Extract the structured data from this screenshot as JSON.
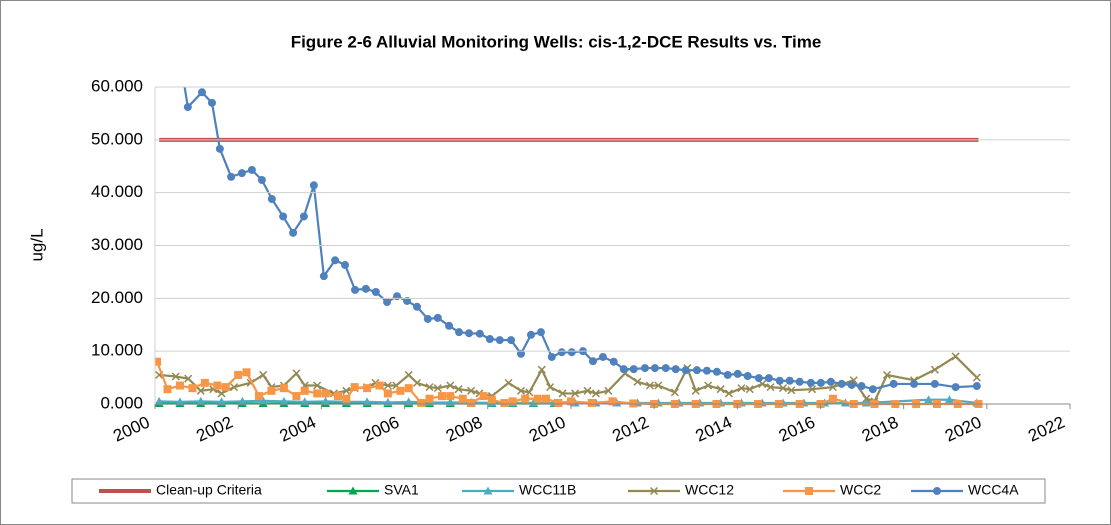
{
  "chart_data": {
    "type": "line",
    "title": "Figure 2-6 Alluvial Monitoring Wells: cis-1,2-DCE Results vs. Time",
    "y_label": "ug/L",
    "xlim": [
      2000,
      2022
    ],
    "xticks": [
      2000,
      2002,
      2004,
      2006,
      2008,
      2010,
      2012,
      2014,
      2016,
      2018,
      2020,
      2022
    ],
    "ylim": [
      0,
      60
    ],
    "yticks": [
      {
        "value": 0,
        "label": "0.000"
      },
      {
        "value": 10,
        "label": "10.000"
      },
      {
        "value": 20,
        "label": "20.000"
      },
      {
        "value": 30,
        "label": "30.000"
      },
      {
        "value": 40,
        "label": "40.000"
      },
      {
        "value": 50,
        "label": "50.000"
      },
      {
        "value": 60,
        "label": "60.000"
      }
    ],
    "grid": true,
    "legend": "bottom",
    "series": [
      {
        "name": "Clean-up Criteria",
        "color": "#c0504d",
        "marker": "none",
        "x": [
          2000.1,
          2019.8
        ],
        "values": [
          50,
          50
        ]
      },
      {
        "name": "SVA1",
        "color": "#00a650",
        "marker": "triangle",
        "x": [
          2000.1,
          2000.6,
          2001.1,
          2001.6,
          2002.1,
          2002.6,
          2003.1,
          2003.6,
          2004.1,
          2004.6,
          2005.1,
          2005.6,
          2006.1,
          2006.6,
          2007.1,
          2007.6,
          2008.1,
          2008.6,
          2009.1,
          2009.6
        ],
        "values": [
          0.1,
          0.1,
          0.1,
          0.1,
          0.1,
          0.1,
          0.1,
          0.1,
          0.1,
          0.1,
          0.1,
          0.1,
          0.1,
          0.1,
          0.1,
          0.1,
          0.1,
          0.1,
          0.1,
          0.1
        ]
      },
      {
        "name": "WCC11B",
        "color": "#4bacc6",
        "marker": "triangle",
        "x": [
          2000.1,
          2000.6,
          2001.1,
          2001.6,
          2002.1,
          2002.6,
          2003.1,
          2003.6,
          2004.1,
          2004.6,
          2005.1,
          2005.6,
          2006.1,
          2006.6,
          2007.1,
          2007.6,
          2008.1,
          2008.6,
          2009.1,
          2009.6,
          2010.1,
          2010.6,
          2011.1,
          2011.6,
          2012.1,
          2012.6,
          2013.1,
          2013.6,
          2014.1,
          2014.6,
          2015.1,
          2015.6,
          2016.1,
          2016.6,
          2017.1,
          2018.6,
          2019.1,
          2019.76
        ],
        "values": [
          0.5,
          0.4,
          0.5,
          0.4,
          0.5,
          0.6,
          0.5,
          0.4,
          0.5,
          0.4,
          0.4,
          0.3,
          0.4,
          0.3,
          0.3,
          0.3,
          0.2,
          0.2,
          0.2,
          0.2,
          0.2,
          0.2,
          0.2,
          0.2,
          0.2,
          0.2,
          0.2,
          0.2,
          0.2,
          0.2,
          0.2,
          0.2,
          0.2,
          0.2,
          0.2,
          0.8,
          0.8,
          0.2
        ]
      },
      {
        "name": "WCC12",
        "color": "#938953",
        "marker": "x",
        "x": [
          2000.1,
          2000.5,
          2000.8,
          2001.1,
          2001.4,
          2001.6,
          2001.9,
          2002.3,
          2002.6,
          2002.8,
          2003.1,
          2003.4,
          2003.6,
          2003.9,
          2004.3,
          2004.6,
          2004.8,
          2005.1,
          2005.3,
          2005.6,
          2005.8,
          2006.1,
          2006.3,
          2006.6,
          2006.8,
          2007.1,
          2007.3,
          2007.6,
          2007.8,
          2008.1,
          2008.5,
          2008.8,
          2009.0,
          2009.3,
          2009.5,
          2009.8,
          2010.1,
          2010.4,
          2010.6,
          2010.9,
          2011.3,
          2011.6,
          2011.9,
          2012.1,
          2012.5,
          2012.8,
          2013.0,
          2013.3,
          2013.6,
          2013.8,
          2014.1,
          2014.3,
          2014.6,
          2014.8,
          2015.1,
          2015.3,
          2015.8,
          2016.3,
          2016.8,
          2017.1,
          2017.3,
          2017.6,
          2018.25,
          2018.75,
          2019.25,
          2019.76
        ],
        "values": [
          5.5,
          5.2,
          4.8,
          2.5,
          2.8,
          2.0,
          3.2,
          4.0,
          5.5,
          3.2,
          3.5,
          5.8,
          3.5,
          3.5,
          2.0,
          2.5,
          3.0,
          3.2,
          4.0,
          3.5,
          3.5,
          5.5,
          4.0,
          3.2,
          3.0,
          3.5,
          2.8,
          2.5,
          2.0,
          1.5,
          4.0,
          2.5,
          2.2,
          6.5,
          3.2,
          2.0,
          2.0,
          2.5,
          2.0,
          2.5,
          5.8,
          4.2,
          3.5,
          3.5,
          2.2,
          6.8,
          2.5,
          3.5,
          2.8,
          2.0,
          3.0,
          2.8,
          3.8,
          3.2,
          3.0,
          2.6,
          2.8,
          3.2,
          4.5,
          1.0,
          0.5,
          5.5,
          4.5,
          6.5,
          9.0,
          5.0
        ]
      },
      {
        "name": "WCC2",
        "color": "#f79646",
        "marker": "square",
        "x": [
          2000.05,
          2000.3,
          2000.6,
          2000.9,
          2001.2,
          2001.5,
          2001.7,
          2002.0,
          2002.2,
          2002.5,
          2002.8,
          2003.1,
          2003.4,
          2003.6,
          2003.9,
          2004.1,
          2004.4,
          2004.6,
          2004.8,
          2005.1,
          2005.4,
          2005.6,
          2005.9,
          2006.1,
          2006.4,
          2006.6,
          2006.9,
          2007.1,
          2007.4,
          2007.6,
          2007.9,
          2008.1,
          2008.4,
          2008.6,
          2008.9,
          2009.2,
          2009.4,
          2009.7,
          2010.0,
          2010.5,
          2011.0,
          2011.5,
          2012.0,
          2012.5,
          2013.0,
          2013.5,
          2014.0,
          2014.5,
          2015.0,
          2015.5,
          2016.0,
          2016.3,
          2016.8,
          2017.3,
          2017.8,
          2018.3,
          2018.8,
          2019.3,
          2019.8
        ],
        "values": [
          8.0,
          2.8,
          3.5,
          3.0,
          4.0,
          3.5,
          3.2,
          5.5,
          6.0,
          1.5,
          2.5,
          3.0,
          1.5,
          2.5,
          2.0,
          2.0,
          1.5,
          1.0,
          3.2,
          3.0,
          3.5,
          2.0,
          2.5,
          3.0,
          0.2,
          1.0,
          1.5,
          1.5,
          1.0,
          0.2,
          1.5,
          0.8,
          0.2,
          0.5,
          1.0,
          1.0,
          1.0,
          0.2,
          0.5,
          0.2,
          0.5,
          0.1,
          0,
          0,
          0,
          0,
          0,
          0,
          0,
          0,
          0,
          1.0,
          0,
          0,
          0,
          0,
          0,
          0,
          0
        ]
      },
      {
        "name": "WCC4A",
        "color": "#4f81bd",
        "marker": "circle",
        "x": [
          2000.55,
          2000.79,
          2001.13,
          2001.37,
          2001.56,
          2001.83,
          2002.09,
          2002.33,
          2002.57,
          2002.81,
          2003.08,
          2003.32,
          2003.58,
          2003.82,
          2004.06,
          2004.33,
          2004.57,
          2004.81,
          2005.07,
          2005.31,
          2005.58,
          2005.82,
          2006.06,
          2006.3,
          2006.56,
          2006.8,
          2007.07,
          2007.31,
          2007.55,
          2007.81,
          2008.05,
          2008.29,
          2008.56,
          2008.8,
          2009.04,
          2009.28,
          2009.54,
          2009.78,
          2010.02,
          2010.29,
          2010.53,
          2010.77,
          2011.03,
          2011.27,
          2011.51,
          2011.78,
          2012.02,
          2012.28,
          2012.52,
          2012.76,
          2013.03,
          2013.27,
          2013.51,
          2013.77,
          2014.01,
          2014.25,
          2014.52,
          2014.76,
          2015.02,
          2015.26,
          2015.5,
          2015.77,
          2016.01,
          2016.25,
          2016.51,
          2016.75,
          2016.99,
          2017.26,
          2017.76,
          2018.25,
          2018.75,
          2019.25,
          2019.76
        ],
        "values": [
          68,
          56.2,
          59.0,
          57.0,
          48.3,
          43.0,
          43.7,
          44.3,
          42.4,
          38.8,
          35.5,
          32.4,
          35.5,
          41.4,
          24.2,
          27.2,
          26.3,
          21.6,
          21.8,
          21.2,
          19.3,
          20.4,
          19.5,
          18.4,
          16.1,
          16.3,
          14.8,
          13.6,
          13.4,
          13.3,
          12.3,
          12.1,
          12.1,
          9.5,
          13.1,
          13.6,
          8.9,
          9.8,
          9.8,
          10.0,
          8.1,
          8.9,
          8.0,
          6.6,
          6.6,
          6.8,
          6.8,
          6.8,
          6.6,
          6.4,
          6.4,
          6.3,
          6.1,
          5.5,
          5.7,
          5.3,
          4.9,
          4.9,
          4.4,
          4.4,
          4.2,
          4.0,
          4.0,
          4.2,
          3.8,
          3.6,
          3.4,
          2.8,
          3.8,
          3.8,
          3.8,
          3.2,
          3.4
        ]
      }
    ]
  }
}
